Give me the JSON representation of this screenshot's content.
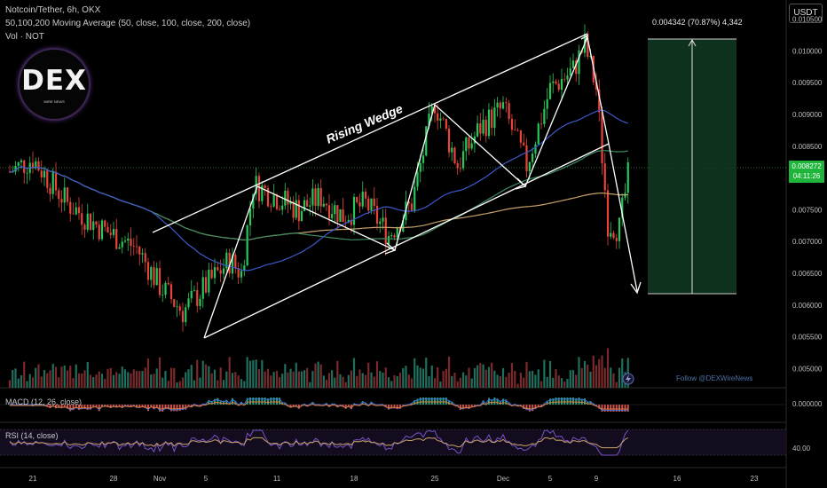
{
  "header": {
    "line1": "Notcoin/Tether, 6h, OKX",
    "line2": "50,100,200 Moving Average (50, close, 100, close, 200, close)",
    "line3": "Vol · NOT"
  },
  "currency_button": "USDT",
  "current_price": {
    "value": "0.008272",
    "countdown": "04:11:26"
  },
  "logo": {
    "text": "DEX",
    "subtext": "WIRE NEWS"
  },
  "watermark": "Follow @DEXWireNews",
  "measure_label": "0.004342 (70.87%) 4,342",
  "pattern_label": "Rising Wedge",
  "macd_label": "MACD (12, 26, close)",
  "rsi_label": "RSI (14, close)",
  "colors": {
    "up": "#26c85a",
    "down": "#e8443a",
    "ma50": "#3d58c9",
    "ma100": "#3d8a5e",
    "ma200": "#c8a26a",
    "rsi": "#7a52c7",
    "measure_box": "#0f3a22"
  },
  "chart_data": {
    "type": "candlestick",
    "title": "Notcoin/Tether, 6h, OKX",
    "price_axis": {
      "ticks": [
        "0.010500",
        "0.010000",
        "0.009500",
        "0.009000",
        "0.008500",
        "0.008000",
        "0.007500",
        "0.007000",
        "0.006500",
        "0.006000",
        "0.005500",
        "0.005000"
      ],
      "range": [
        0.0047,
        0.0108
      ]
    },
    "time_axis": {
      "ticks": [
        "21",
        "28",
        "Nov",
        "5",
        "11",
        "18",
        "25",
        "Dec",
        "5",
        "9",
        "16",
        "23"
      ]
    },
    "close_path": [
      {
        "date": "Oct 19",
        "price": 0.0081
      },
      {
        "date": "Oct 21",
        "price": 0.0083
      },
      {
        "date": "Oct 24",
        "price": 0.0076
      },
      {
        "date": "Oct 27",
        "price": 0.0072
      },
      {
        "date": "Oct 30",
        "price": 0.0069
      },
      {
        "date": "Nov 1",
        "price": 0.0063
      },
      {
        "date": "Nov 3",
        "price": 0.0059
      },
      {
        "date": "Nov 5",
        "price": 0.0063
      },
      {
        "date": "Nov 7",
        "price": 0.0067
      },
      {
        "date": "Nov 8",
        "price": 0.0065
      },
      {
        "date": "Nov 9",
        "price": 0.0079
      },
      {
        "date": "Nov 11",
        "price": 0.0077
      },
      {
        "date": "Nov 13",
        "price": 0.0075
      },
      {
        "date": "Nov 15",
        "price": 0.0077
      },
      {
        "date": "Nov 17",
        "price": 0.0074
      },
      {
        "date": "Nov 19",
        "price": 0.0076
      },
      {
        "date": "Nov 21",
        "price": 0.0071
      },
      {
        "date": "Nov 23",
        "price": 0.0076
      },
      {
        "date": "Nov 25",
        "price": 0.0092
      },
      {
        "date": "Nov 27",
        "price": 0.0082
      },
      {
        "date": "Nov 29",
        "price": 0.0088
      },
      {
        "date": "Dec 1",
        "price": 0.0091
      },
      {
        "date": "Dec 3",
        "price": 0.0082
      },
      {
        "date": "Dec 5",
        "price": 0.0094
      },
      {
        "date": "Dec 7",
        "price": 0.0097
      },
      {
        "date": "Dec 8",
        "price": 0.0101
      },
      {
        "date": "Dec 9",
        "price": 0.0094
      },
      {
        "date": "Dec 10",
        "price": 0.0073
      },
      {
        "date": "Dec 11",
        "price": 0.0072
      },
      {
        "date": "Dec 12",
        "price": 0.0083
      }
    ],
    "volume_range": [
      0,
      0.0001
    ],
    "macd": {
      "zero_tick": "0.000000"
    },
    "rsi": {
      "tick": "40.00"
    },
    "measurement": {
      "change": "0.004342",
      "percent": "70.87%",
      "ticks": "4,342",
      "from": 0.0061,
      "to": 0.0105
    }
  }
}
